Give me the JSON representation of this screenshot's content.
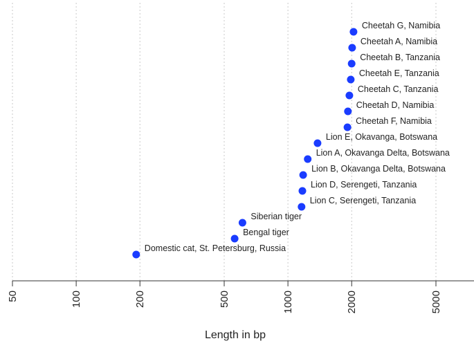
{
  "chart_data": {
    "type": "scatter",
    "x_scale": "log",
    "xlabel": "Length in bp",
    "xlim": [
      50,
      7000
    ],
    "x_ticks": [
      {
        "value": 50,
        "label": "50"
      },
      {
        "value": 100,
        "label": "100"
      },
      {
        "value": 200,
        "label": "200"
      },
      {
        "value": 500,
        "label": "500"
      },
      {
        "value": 1000,
        "label": "1000"
      },
      {
        "value": 2000,
        "label": "2000"
      },
      {
        "value": 5000,
        "label": "5000"
      }
    ],
    "grid": true,
    "point_color": "#1a3cff",
    "points": [
      {
        "label": "Cheetah G, Namibia",
        "x": 2040
      },
      {
        "label": "Cheetah A, Namibia",
        "x": 2010
      },
      {
        "label": "Cheetah B, Tanzania",
        "x": 2000
      },
      {
        "label": "Cheetah E, Tanzania",
        "x": 1980
      },
      {
        "label": "Cheetah C, Tanzania",
        "x": 1950
      },
      {
        "label": "Cheetah D, Namibia",
        "x": 1920
      },
      {
        "label": "Cheetah F, Namibia",
        "x": 1910
      },
      {
        "label": "Lion E, Okavanga, Botswana",
        "x": 1380
      },
      {
        "label": "Lion A, Okavanga Delta, Botswana",
        "x": 1240
      },
      {
        "label": "Lion B, Okavanga Delta, Botswana",
        "x": 1180
      },
      {
        "label": "Lion D, Serengeti, Tanzania",
        "x": 1170
      },
      {
        "label": "Lion C, Serengeti, Tanzania",
        "x": 1160
      },
      {
        "label": "Siberian tiger",
        "x": 610
      },
      {
        "label": "Bengal tiger",
        "x": 560
      },
      {
        "label": "Domestic cat, St. Petersburg, Russia",
        "x": 192
      }
    ]
  }
}
